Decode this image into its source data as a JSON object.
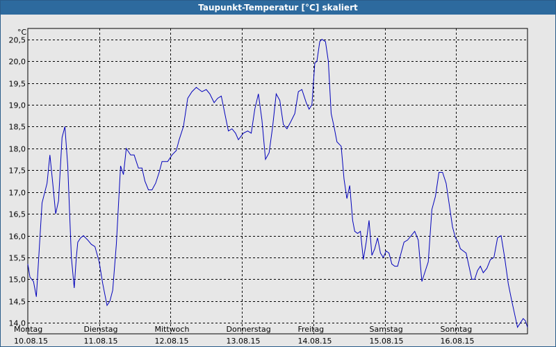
{
  "window": {
    "title": "Taupunkt-Temperatur [°C] skaliert"
  },
  "colors": {
    "line": "#0000bb",
    "background": "#e7e7e7",
    "titlebar": "#2d6a9e",
    "grid": "#000000"
  },
  "chart_data": {
    "type": "line",
    "title": "Taupunkt-Temperatur [°C] skaliert",
    "ylabel": "°C",
    "xlabel": "",
    "ylim": [
      13.75,
      20.75
    ],
    "xlim": [
      0,
      7
    ],
    "grid": true,
    "grid_style": "dashed",
    "y_ticks": [
      "14,0",
      "14,5",
      "15,0",
      "15,5",
      "16,0",
      "16,5",
      "17,0",
      "17,5",
      "18,0",
      "18,5",
      "19,0",
      "19,5",
      "20,0",
      "20,5"
    ],
    "y_tick_values": [
      14.0,
      14.5,
      15.0,
      15.5,
      16.0,
      16.5,
      17.0,
      17.5,
      18.0,
      18.5,
      19.0,
      19.5,
      20.0,
      20.5
    ],
    "x_ticks": [
      {
        "day": "Montag",
        "date": "10.08.15",
        "x": 0
      },
      {
        "day": "Dienstag",
        "date": "11.08.15",
        "x": 1
      },
      {
        "day": "Mittwoch",
        "date": "12.08.15",
        "x": 2
      },
      {
        "day": "Donnerstag",
        "date": "13.08.15",
        "x": 3
      },
      {
        "day": "Freitag",
        "date": "14.08.15",
        "x": 4
      },
      {
        "day": "Samstag",
        "date": "15.08.15",
        "x": 5
      },
      {
        "day": "Sonntag",
        "date": "16.08.15",
        "x": 6
      }
    ],
    "series": [
      {
        "color": "#0000bb",
        "x": [
          0,
          0.03,
          0.08,
          0.12,
          0.2,
          0.27,
          0.31,
          0.35,
          0.39,
          0.43,
          0.48,
          0.52,
          0.56,
          0.61,
          0.65,
          0.68,
          0.7,
          0.74,
          0.78,
          0.84,
          0.89,
          0.94,
          1.0,
          1.05,
          1.11,
          1.15,
          1.19,
          1.24,
          1.3,
          1.34,
          1.38,
          1.44,
          1.49,
          1.55,
          1.6,
          1.64,
          1.69,
          1.74,
          1.79,
          1.84,
          1.88,
          1.92,
          1.96,
          2.02,
          2.08,
          2.12,
          2.18,
          2.24,
          2.3,
          2.36,
          2.44,
          2.5,
          2.55,
          2.61,
          2.66,
          2.71,
          2.76,
          2.81,
          2.86,
          2.91,
          2.95,
          3.02,
          3.08,
          3.13,
          3.18,
          3.23,
          3.28,
          3.33,
          3.38,
          3.43,
          3.48,
          3.53,
          3.58,
          3.63,
          3.68,
          3.74,
          3.79,
          3.84,
          3.9,
          3.94,
          3.98,
          4.02,
          4.05,
          4.09,
          4.12,
          4.17,
          4.21,
          4.25,
          4.29,
          4.33,
          4.39,
          4.43,
          4.47,
          4.51,
          4.55,
          4.58,
          4.62,
          4.66,
          4.7,
          4.74,
          4.78,
          4.82,
          4.86,
          4.9,
          4.94,
          4.98,
          5.02,
          5.06,
          5.1,
          5.14,
          5.18,
          5.22,
          5.27,
          5.32,
          5.37,
          5.42,
          5.47,
          5.52,
          5.57,
          5.61,
          5.66,
          5.71,
          5.76,
          5.81,
          5.86,
          5.91,
          5.95,
          5.99,
          6.03,
          6.06,
          6.1,
          6.14,
          6.18,
          6.22,
          6.26,
          6.3,
          6.34,
          6.38,
          6.43,
          6.48,
          6.53,
          6.58,
          6.63,
          6.68,
          6.73,
          6.78,
          6.82,
          6.86,
          6.9,
          6.94,
          6.97,
          7.0
        ],
        "values": [
          15.35,
          15.05,
          14.95,
          14.6,
          16.75,
          17.2,
          17.85,
          17.2,
          16.5,
          16.8,
          18.25,
          18.5,
          17.6,
          15.5,
          14.8,
          15.5,
          15.85,
          15.95,
          16.0,
          15.9,
          15.8,
          15.75,
          15.4,
          14.9,
          14.4,
          14.5,
          14.75,
          15.8,
          17.6,
          17.4,
          18.0,
          17.85,
          17.85,
          17.55,
          17.55,
          17.25,
          17.05,
          17.05,
          17.2,
          17.45,
          17.7,
          17.7,
          17.7,
          17.85,
          17.95,
          18.2,
          18.5,
          19.15,
          19.3,
          19.4,
          19.3,
          19.35,
          19.25,
          19.05,
          19.15,
          19.2,
          18.8,
          18.4,
          18.45,
          18.35,
          18.2,
          18.35,
          18.4,
          18.35,
          18.9,
          19.25,
          18.65,
          17.75,
          17.9,
          18.5,
          19.25,
          19.1,
          18.55,
          18.45,
          18.6,
          18.8,
          19.3,
          19.35,
          19.05,
          18.9,
          19.0,
          19.95,
          20.0,
          20.45,
          20.5,
          20.45,
          20.0,
          18.8,
          18.5,
          18.15,
          18.05,
          17.3,
          16.85,
          17.15,
          16.35,
          16.1,
          16.05,
          16.1,
          15.45,
          15.85,
          16.35,
          15.55,
          15.7,
          15.95,
          15.6,
          15.5,
          15.65,
          15.6,
          15.35,
          15.3,
          15.3,
          15.55,
          15.85,
          15.9,
          16.0,
          16.1,
          15.9,
          14.95,
          15.2,
          15.4,
          16.6,
          16.9,
          17.45,
          17.45,
          17.2,
          16.65,
          16.2,
          15.95,
          15.85,
          15.7,
          15.65,
          15.6,
          15.3,
          15.0,
          15.0,
          15.2,
          15.3,
          15.15,
          15.25,
          15.45,
          15.5,
          15.95,
          16.0,
          15.5,
          14.9,
          14.5,
          14.2,
          13.9,
          14.0,
          14.1,
          14.05,
          13.9
        ]
      }
    ]
  }
}
